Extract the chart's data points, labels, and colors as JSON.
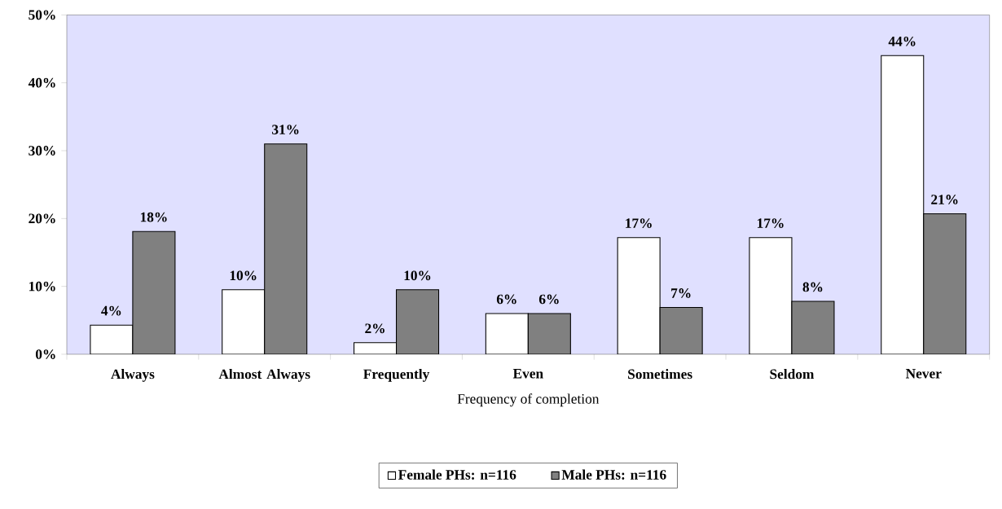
{
  "chart_data": {
    "type": "bar",
    "xlabel": "Frequency of completion",
    "categories": [
      "Always",
      "Almost Always",
      "Frequently",
      "Even",
      "Sometimes",
      "Seldom",
      "Never"
    ],
    "series": [
      {
        "name": "Female PHs: n=116",
        "color": "#ffffff",
        "values": [
          4.3,
          9.5,
          1.7,
          6.0,
          17.2,
          17.2,
          44.0
        ],
        "value_labels": [
          "4%",
          "10%",
          "2%",
          "6%",
          "17%",
          "17%",
          "44%"
        ]
      },
      {
        "name": "Male PHs: n=116",
        "color": "#808080",
        "values": [
          18.1,
          31.0,
          9.5,
          6.0,
          6.9,
          7.8,
          20.7
        ],
        "value_labels": [
          "18%",
          "31%",
          "10%",
          "6%",
          "7%",
          "8%",
          "21%"
        ]
      }
    ],
    "ylim": [
      0,
      50
    ],
    "yticks": [
      {
        "value": 0,
        "label": "0%"
      },
      {
        "value": 10,
        "label": "10%"
      },
      {
        "value": 20,
        "label": "20%"
      },
      {
        "value": 30,
        "label": "30%"
      },
      {
        "value": 40,
        "label": "40%"
      },
      {
        "value": 50,
        "label": "50%"
      }
    ],
    "legend": "bottom"
  }
}
